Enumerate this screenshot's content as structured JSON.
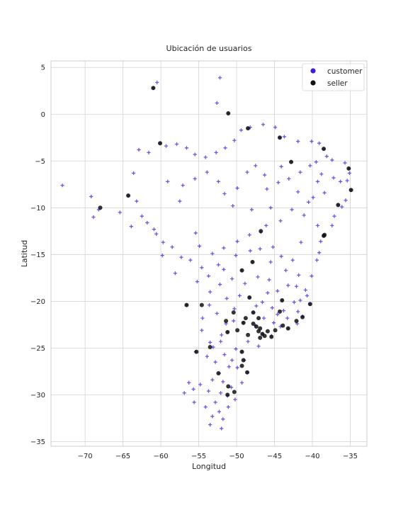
{
  "chart_data": {
    "type": "scatter",
    "title": "Ubicación de usuarios",
    "xlabel": "Longitud",
    "ylabel": "Latitud",
    "xlim": [
      -74.5,
      -32.8
    ],
    "ylim": [
      -35.5,
      5.7
    ],
    "x_ticks": [
      -70,
      -65,
      -60,
      -55,
      -50,
      -45,
      -40,
      -35
    ],
    "y_ticks": [
      5,
      0,
      -5,
      -10,
      -15,
      -20,
      -25,
      -30,
      -35
    ],
    "x_tick_labels": [
      "−70",
      "−65",
      "−60",
      "−55",
      "−50",
      "−45",
      "−40",
      "−35"
    ],
    "y_tick_labels": [
      "5",
      "0",
      "−5",
      "−10",
      "−15",
      "−20",
      "−25",
      "−30",
      "−35"
    ],
    "grid": true,
    "legend_position": "upper-right",
    "series": [
      {
        "name": "customer",
        "color": "#3a1fd8",
        "marker": "plus",
        "points": [
          [
            -73,
            -7.6
          ],
          [
            -69.2,
            -8.8
          ],
          [
            -68.9,
            -11
          ],
          [
            -68.2,
            -10.2
          ],
          [
            -61,
            2.8
          ],
          [
            -60.5,
            3.4
          ],
          [
            -60.1,
            -3.1
          ],
          [
            -52.2,
            3.9
          ],
          [
            -51.1,
            0.1
          ],
          [
            -52.6,
            1.2
          ],
          [
            -64.3,
            -8.7
          ],
          [
            -63.2,
            -9.3
          ],
          [
            -62.5,
            -10.9
          ],
          [
            -61.8,
            -11.6
          ],
          [
            -60.9,
            -12.3
          ],
          [
            -65.4,
            -10.5
          ],
          [
            -63.9,
            -12
          ],
          [
            -57.5,
            -9.3
          ],
          [
            -56.1,
            -15.6
          ],
          [
            -55.4,
            -12.7
          ],
          [
            -54.6,
            -16.4
          ],
          [
            -52.4,
            -16.1
          ],
          [
            -58.1,
            -17
          ],
          [
            -56.6,
            -20.4
          ],
          [
            -54.5,
            -21.8
          ],
          [
            -55.4,
            -25.4
          ],
          [
            -56.9,
            -29.8
          ],
          [
            -54.1,
            -31.3
          ],
          [
            -52.3,
            -31.8
          ],
          [
            -52,
            -33.6
          ],
          [
            -53.5,
            -33.2
          ],
          [
            -51.2,
            -30.1
          ],
          [
            -49.3,
            -28.7
          ],
          [
            -48.6,
            -27.6
          ],
          [
            -49,
            -26.3
          ],
          [
            -51,
            -27
          ],
          [
            -50.1,
            -25.1
          ],
          [
            -52.3,
            -27.7
          ],
          [
            -51.2,
            -23.3
          ],
          [
            -49.3,
            -25.4
          ],
          [
            -47.9,
            -15.8
          ],
          [
            -46.6,
            -23.5
          ],
          [
            -43.2,
            -22.9
          ],
          [
            -44,
            -19.9
          ],
          [
            -48.5,
            -1.5
          ],
          [
            -38.5,
            -3.7
          ],
          [
            -35.2,
            -5.8
          ],
          [
            -34.9,
            -8.1
          ],
          [
            -38.5,
            -13
          ],
          [
            -40.3,
            -20.3
          ],
          [
            -47.8,
            -21.2
          ],
          [
            -45.9,
            -19.1
          ],
          [
            -42.8,
            -5.1
          ],
          [
            -44.3,
            -2.5
          ],
          [
            -50.5,
            -9.8
          ],
          [
            -49.3,
            -16.7
          ],
          [
            -41.5,
            -13.7
          ],
          [
            -39.3,
            -11.9
          ],
          [
            -37.1,
            -10.9
          ],
          [
            -36.6,
            -9.7
          ],
          [
            -40.5,
            -9.4
          ],
          [
            -36.3,
            -7.2
          ],
          [
            -39.3,
            -7.2
          ],
          [
            -41.9,
            -8.3
          ],
          [
            -46.8,
            -12.6
          ],
          [
            -45.2,
            -14.2
          ],
          [
            -43.5,
            -16.7
          ],
          [
            -42.1,
            -18.4
          ],
          [
            -50.3,
            -20.8
          ],
          [
            -53.5,
            -19
          ],
          [
            -48,
            -10.2
          ],
          [
            -47.5,
            -5.5
          ],
          [
            -46,
            -8
          ],
          [
            -44.5,
            -7.3
          ],
          [
            -45.5,
            -10
          ],
          [
            -47.5,
            -22.6
          ],
          [
            -45.1,
            -22.3
          ],
          [
            -49.1,
            -22.3
          ],
          [
            -50.4,
            -22.1
          ],
          [
            -51.4,
            -22.4
          ],
          [
            -52,
            -23.6
          ],
          [
            -53.1,
            -24.9
          ],
          [
            -48.5,
            -24.3
          ],
          [
            -47.1,
            -24.8
          ],
          [
            -45.4,
            -23.7
          ],
          [
            -44.2,
            -22.7
          ],
          [
            -42,
            -22.4
          ],
          [
            -41.3,
            -21.6
          ],
          [
            -47.4,
            -20.5
          ],
          [
            -46.4,
            -21.8
          ],
          [
            -43.8,
            -21
          ],
          [
            -42.4,
            -20.1
          ],
          [
            -40.9,
            -18.8
          ],
          [
            -40.1,
            -17.3
          ],
          [
            -39.4,
            -15.6
          ],
          [
            -39.1,
            -14.8
          ],
          [
            -38.9,
            -13.6
          ],
          [
            -37.4,
            -11.9
          ],
          [
            -36.1,
            -9.9
          ],
          [
            -35.6,
            -9.2
          ],
          [
            -35.4,
            -7.1
          ],
          [
            -35.1,
            -6.3
          ],
          [
            -35.7,
            -5.2
          ],
          [
            -37.4,
            -4.9
          ],
          [
            -38.1,
            -4.5
          ],
          [
            -39.1,
            -3.1
          ],
          [
            -40.1,
            -2.9
          ],
          [
            -41.9,
            -2.9
          ],
          [
            -43.7,
            -2.4
          ],
          [
            -44.9,
            -1.4
          ],
          [
            -46.5,
            -1.1
          ],
          [
            -48.2,
            -1.4
          ],
          [
            -49.4,
            -1.7
          ],
          [
            -50.3,
            -2.8
          ],
          [
            -51.5,
            -3.6
          ],
          [
            -52.7,
            -4.1
          ],
          [
            -54.1,
            -4.6
          ],
          [
            -55.5,
            -4.3
          ],
          [
            -56.6,
            -3.6
          ],
          [
            -57.9,
            -3.2
          ],
          [
            -59.3,
            -3.4
          ],
          [
            -61.6,
            -4.1
          ],
          [
            -62.9,
            -3.8
          ],
          [
            -63.6,
            -6.3
          ],
          [
            -59.1,
            -7.2
          ],
          [
            -57.1,
            -7.6
          ],
          [
            -55.5,
            -6.9
          ],
          [
            -53.9,
            -6.2
          ],
          [
            -52.4,
            -7.2
          ],
          [
            -51.6,
            -8.5
          ],
          [
            -49.9,
            -7.9
          ],
          [
            -48.6,
            -6.2
          ],
          [
            -46.3,
            -6.5
          ],
          [
            -44.1,
            -5.6
          ],
          [
            -43.1,
            -6.9
          ],
          [
            -41.6,
            -6.2
          ],
          [
            -40.3,
            -5.5
          ],
          [
            -39.5,
            -5.1
          ],
          [
            -38.8,
            -6.4
          ],
          [
            -37.2,
            -6.8
          ],
          [
            -38.4,
            -8.4
          ],
          [
            -39.9,
            -8.9
          ],
          [
            -41.1,
            -10.8
          ],
          [
            -42.7,
            -10.2
          ],
          [
            -44.2,
            -11.4
          ],
          [
            -46.1,
            -11.9
          ],
          [
            -48.3,
            -12.9
          ],
          [
            -49.9,
            -13.6
          ],
          [
            -51.7,
            -14.3
          ],
          [
            -53.2,
            -14.9
          ],
          [
            -54.9,
            -14.1
          ],
          [
            -57.3,
            -15.3
          ],
          [
            -58.5,
            -14.2
          ],
          [
            -59.7,
            -13.7
          ],
          [
            -60.6,
            -12.8
          ],
          [
            -59.8,
            -15.1
          ],
          [
            -55.2,
            -17.9
          ],
          [
            -53.7,
            -17.3
          ],
          [
            -52.2,
            -18.2
          ],
          [
            -50.6,
            -17.6
          ],
          [
            -48.9,
            -18.1
          ],
          [
            -47.2,
            -17.4
          ],
          [
            -45.7,
            -17.7
          ],
          [
            -44.6,
            -18.9
          ],
          [
            -43.2,
            -18.3
          ],
          [
            -41.8,
            -17.2
          ],
          [
            -42.6,
            -15.6
          ],
          [
            -44.1,
            -15.2
          ],
          [
            -45.5,
            -15.8
          ],
          [
            -46.9,
            -14.4
          ],
          [
            -48.2,
            -14.6
          ],
          [
            -50.1,
            -15.1
          ],
          [
            -51.7,
            -16.6
          ],
          [
            -53.6,
            -20.4
          ],
          [
            -52.6,
            -21.3
          ],
          [
            -51.3,
            -19.7
          ],
          [
            -49.6,
            -19.4
          ],
          [
            -48.3,
            -19.6
          ],
          [
            -46.6,
            -20.1
          ],
          [
            -45.3,
            -20.7
          ],
          [
            -44.6,
            -21.4
          ],
          [
            -43.3,
            -21.8
          ],
          [
            -41.9,
            -21.1
          ],
          [
            -41.6,
            -19.9
          ],
          [
            -40.7,
            -19.4
          ],
          [
            -54.6,
            -23.1
          ],
          [
            -53.9,
            -25.9
          ],
          [
            -52.8,
            -26.5
          ],
          [
            -51.6,
            -25.7
          ],
          [
            -50.6,
            -26.3
          ],
          [
            -49.9,
            -27.1
          ],
          [
            -51.8,
            -28.6
          ],
          [
            -53.2,
            -28.4
          ],
          [
            -54.8,
            -28.9
          ],
          [
            -55.7,
            -29.4
          ],
          [
            -53.7,
            -29.6
          ],
          [
            -52.1,
            -29.8
          ],
          [
            -50.7,
            -29.2
          ],
          [
            -50.2,
            -30.5
          ],
          [
            -51.1,
            -31.3
          ],
          [
            -52.8,
            -30.8
          ],
          [
            -53.2,
            -32.3
          ],
          [
            -51.8,
            -32.6
          ],
          [
            -55.6,
            -30.8
          ],
          [
            -56.3,
            -28.7
          ],
          [
            -52.1,
            -24.3
          ],
          [
            -53.5,
            -24.4
          ]
        ]
      },
      {
        "name": "seller",
        "color": "#111111",
        "marker": "circle",
        "points": [
          [
            -46.6,
            -23.5
          ],
          [
            -46.9,
            -22.9
          ],
          [
            -47.1,
            -23.2
          ],
          [
            -46.3,
            -23.7
          ],
          [
            -47.4,
            -22.7
          ],
          [
            -45.9,
            -23.2
          ],
          [
            -46.9,
            -23.9
          ],
          [
            -47.8,
            -22.4
          ],
          [
            -48.5,
            -23.6
          ],
          [
            -49.1,
            -22.3
          ],
          [
            -49.3,
            -25.4
          ],
          [
            -51.2,
            -23.3
          ],
          [
            -51.4,
            -22.1
          ],
          [
            -49.3,
            -26.9
          ],
          [
            -48.6,
            -27.6
          ],
          [
            -49.1,
            -26.3
          ],
          [
            -51.2,
            -30
          ],
          [
            -51.1,
            -29.1
          ],
          [
            -50.3,
            -29.7
          ],
          [
            -43.2,
            -22.9
          ],
          [
            -43.9,
            -22.6
          ],
          [
            -44,
            -19.9
          ],
          [
            -42.1,
            -22.1
          ],
          [
            -47.9,
            -15.8
          ],
          [
            -49.3,
            -16.7
          ],
          [
            -47.8,
            -21.2
          ],
          [
            -48.3,
            -19.6
          ],
          [
            -38.5,
            -13
          ],
          [
            -38.5,
            -3.7
          ],
          [
            -34.9,
            -8.1
          ],
          [
            -35.2,
            -5.8
          ],
          [
            -40.3,
            -20.3
          ],
          [
            -60.1,
            -3.1
          ],
          [
            -61,
            2.8
          ],
          [
            -51.1,
            0.1
          ],
          [
            -64.3,
            -8.7
          ],
          [
            -68,
            -10
          ],
          [
            -54.6,
            -20.4
          ],
          [
            -56.6,
            -20.4
          ],
          [
            -55.3,
            -25.4
          ],
          [
            -52.4,
            -27.7
          ],
          [
            -53.5,
            -24.9
          ],
          [
            -45.4,
            -23.8
          ],
          [
            -47.1,
            -21.8
          ],
          [
            -48.8,
            -21.8
          ],
          [
            -50.4,
            -21.2
          ],
          [
            -44.3,
            -21.1
          ],
          [
            -41.3,
            -21.7
          ],
          [
            -49.9,
            -23.1
          ],
          [
            -44.9,
            -23.1
          ],
          [
            -42.8,
            -5.1
          ],
          [
            -44.3,
            -2.5
          ],
          [
            -38.4,
            -12.9
          ],
          [
            -36.6,
            -9.7
          ],
          [
            -48.5,
            -1.5
          ],
          [
            -46.8,
            -12.5
          ]
        ]
      }
    ]
  }
}
